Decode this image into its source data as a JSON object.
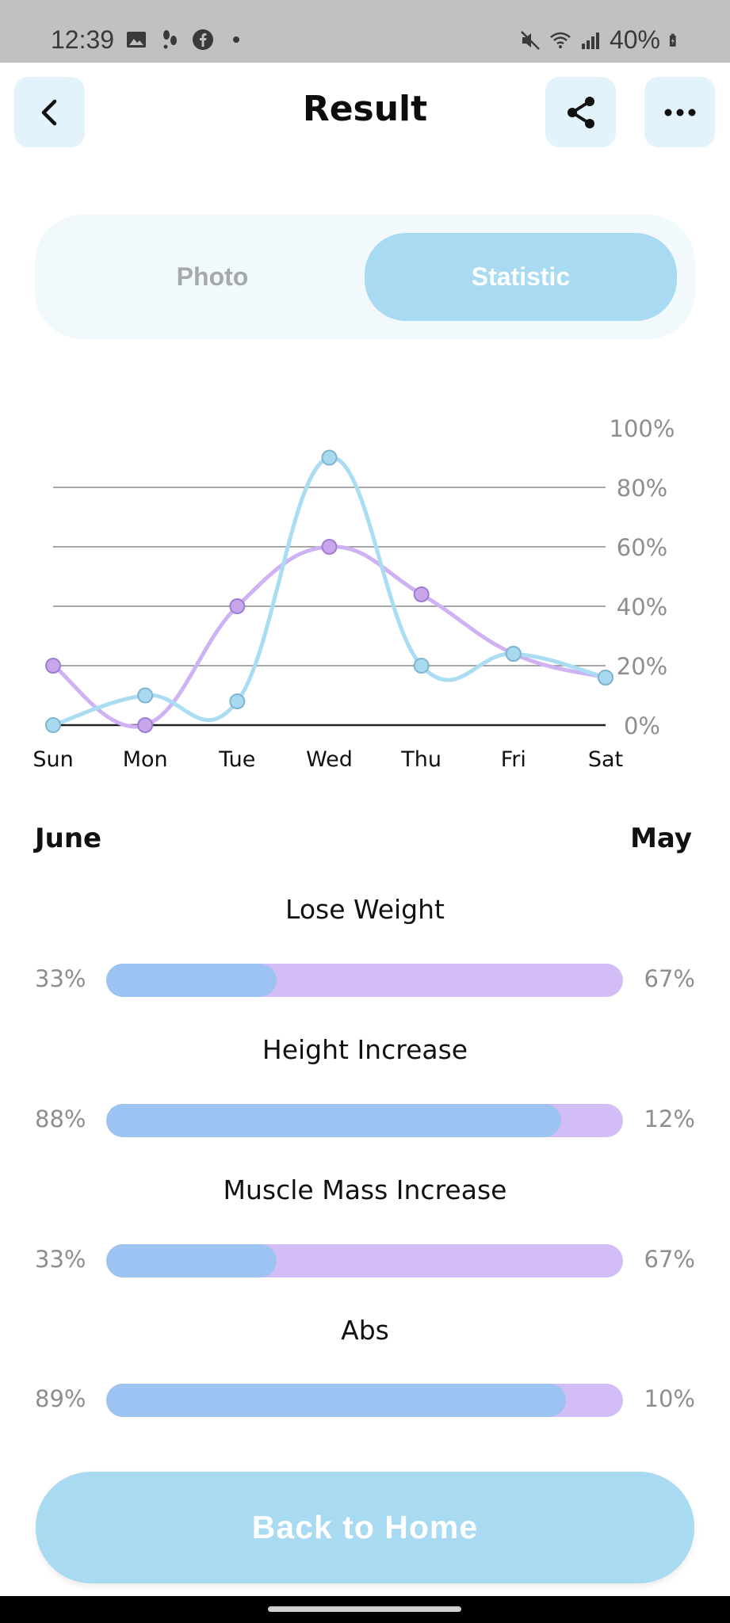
{
  "status_bar": {
    "time": "12:39",
    "battery": "40%",
    "left_icons": [
      "image-icon",
      "steps-icon",
      "facebook-icon",
      "dot-icon"
    ],
    "right_icons": [
      "mute-icon",
      "wifi-icon",
      "signal-icon",
      "battery-icon"
    ]
  },
  "header": {
    "title": "Result",
    "back_icon": "chevron-left-icon",
    "share_icon": "share-icon",
    "more_icon": "more-horizontal-icon"
  },
  "tabs": [
    {
      "label": "Photo",
      "active": false
    },
    {
      "label": "Statistic",
      "active": true
    }
  ],
  "chart_data": {
    "type": "line",
    "categories": [
      "Sun",
      "Mon",
      "Tue",
      "Wed",
      "Thu",
      "Fri",
      "Sat"
    ],
    "y_ticks": [
      "100%",
      "80%",
      "60%",
      "40%",
      "20%",
      "0%"
    ],
    "ylim": [
      0,
      100
    ],
    "grid": true,
    "series": [
      {
        "color": "#aadcf2",
        "point_color": "#a8d9ee",
        "values": [
          0,
          10,
          8,
          90,
          20,
          24,
          16
        ]
      },
      {
        "color": "#cfb2f3",
        "point_color": "#c7a6ec",
        "values": [
          20,
          0,
          40,
          60,
          44,
          24,
          16
        ]
      }
    ]
  },
  "months": {
    "left": "June",
    "right": "May"
  },
  "metrics": [
    {
      "title": "Lose Weight",
      "left": "33%",
      "right": "67%",
      "fill": 0.33
    },
    {
      "title": "Height Increase",
      "left": "88%",
      "right": "12%",
      "fill": 0.88
    },
    {
      "title": "Muscle Mass Increase",
      "left": "33%",
      "right": "67%",
      "fill": 0.33
    },
    {
      "title": "Abs",
      "left": "89%",
      "right": "10%",
      "fill": 0.89
    }
  ],
  "colors": {
    "accent": "#a8daf1",
    "bar_left": "#9cc3f1",
    "bar_right": "#d3bdf6"
  },
  "home_button": {
    "label": "Back to Home"
  }
}
